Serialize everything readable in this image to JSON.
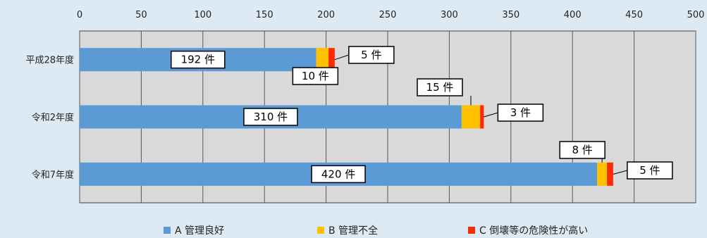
{
  "chart_data": {
    "type": "bar",
    "orientation": "horizontal",
    "stacked": true,
    "title": "",
    "xlabel": "",
    "ylabel": "",
    "xlim": [
      0,
      500
    ],
    "x_ticks": [
      "0",
      "50",
      "100",
      "150",
      "200",
      "250",
      "300",
      "350",
      "400",
      "450",
      "500"
    ],
    "grid": true,
    "legend_position": "bottom",
    "categories": [
      "平成28年度",
      "令和2年度",
      "令和7年度"
    ],
    "series": [
      {
        "name": "A 管理良好",
        "color": "#5b9bd5",
        "values": [
          192,
          310,
          420
        ]
      },
      {
        "name": "B 管理不全",
        "color": "#ffc000",
        "values": [
          10,
          15,
          8
        ]
      },
      {
        "name": "C 倒壊等の危険性が高い",
        "color": "#ff2a00",
        "values": [
          5,
          3,
          5
        ]
      }
    ],
    "data_labels": [
      [
        "192 件",
        "10 件",
        "5 件"
      ],
      [
        "310 件",
        "15 件",
        "3 件"
      ],
      [
        "420 件",
        "8 件",
        "5 件"
      ]
    ]
  }
}
